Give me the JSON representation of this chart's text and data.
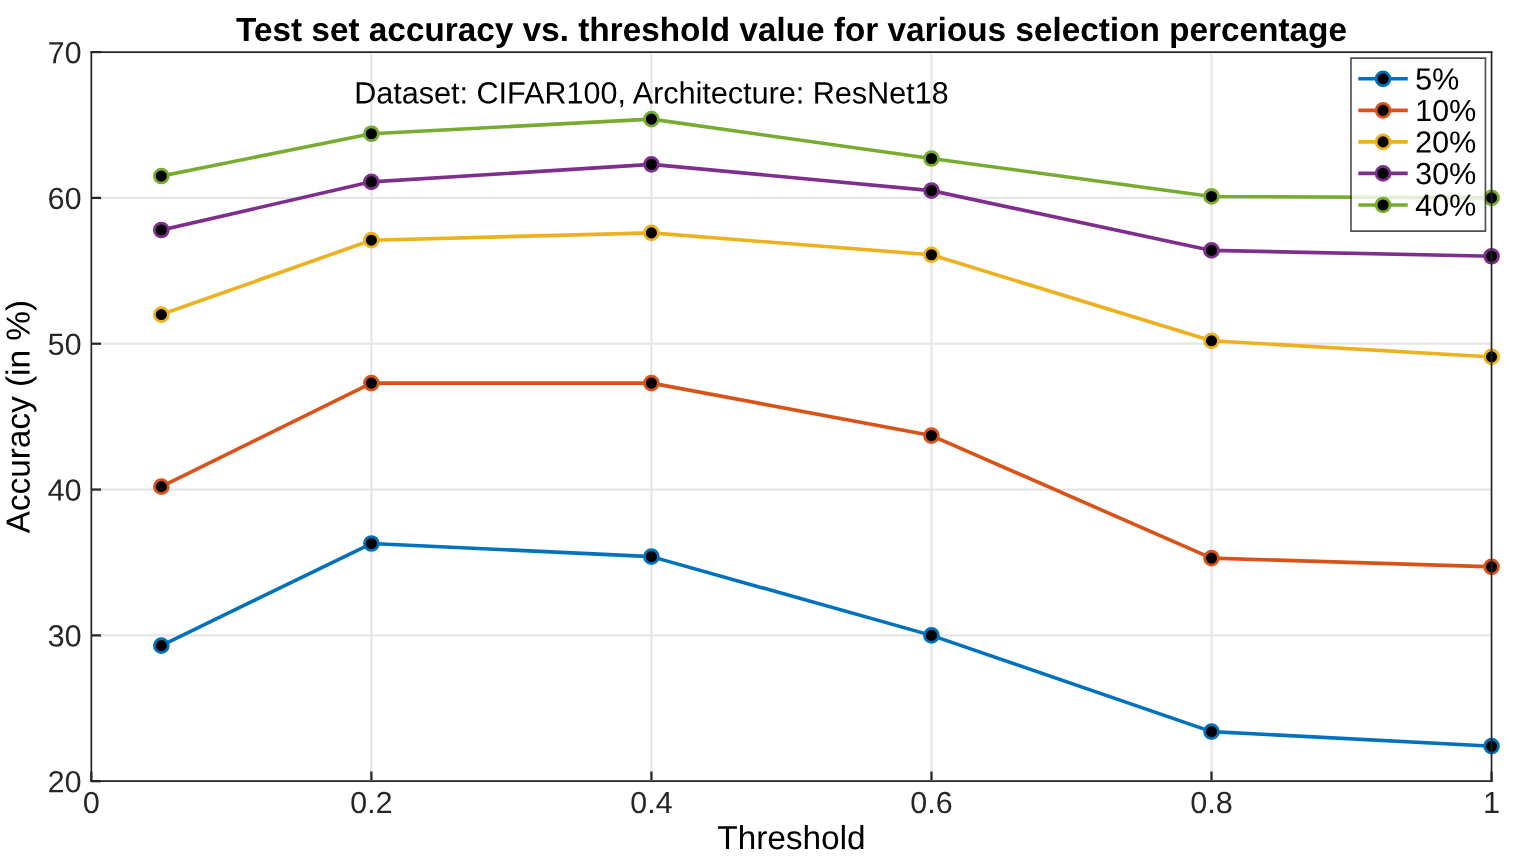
{
  "chart_data": {
    "type": "line",
    "title": "Test set accuracy vs. threshold value for various selection percentage",
    "annotations": [
      "Dataset: CIFAR100, Architecture: ResNet18"
    ],
    "xlabel": "Threshold",
    "ylabel": "Accuracy (in %)",
    "x": [
      0.05,
      0.2,
      0.4,
      0.6,
      0.8,
      1
    ],
    "series": [
      {
        "name": "5%",
        "color": "#0072bd",
        "values": [
          29.3,
          36.3,
          35.4,
          30.0,
          23.4,
          22.4
        ]
      },
      {
        "name": "10%",
        "color": "#d95319",
        "values": [
          40.2,
          47.3,
          47.3,
          43.7,
          35.3,
          34.7
        ]
      },
      {
        "name": "20%",
        "color": "#edb120",
        "values": [
          52.0,
          57.1,
          57.6,
          56.1,
          50.2,
          49.1
        ]
      },
      {
        "name": "30%",
        "color": "#7e2f8e",
        "values": [
          57.8,
          61.1,
          62.3,
          60.5,
          56.4,
          56.0
        ]
      },
      {
        "name": "40%",
        "color": "#77ac30",
        "values": [
          61.5,
          64.4,
          65.4,
          62.7,
          60.1,
          60.0
        ]
      }
    ],
    "xlim": [
      0,
      1
    ],
    "ylim": [
      20,
      70
    ],
    "xticks": [
      0,
      0.2,
      0.4,
      0.6,
      0.8,
      1
    ],
    "yticks": [
      20,
      30,
      40,
      50,
      60,
      70
    ],
    "grid": true,
    "legend": "top right",
    "marker": "circle",
    "line_style": "solid"
  }
}
